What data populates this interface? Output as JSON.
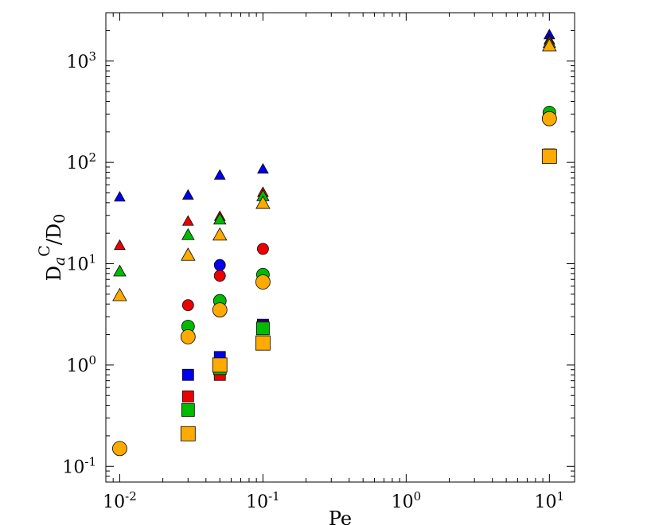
{
  "chart_data": {
    "type": "scatter",
    "xscale": "log",
    "yscale": "log",
    "xlim": [
      0.008,
      15
    ],
    "ylim": [
      0.07,
      3000
    ],
    "xlabel": "Pe",
    "ylabel": {
      "base": "D",
      "sub1": "a",
      "sup": "C",
      "slash": "/D",
      "sub2": "0"
    },
    "grid": false,
    "x_ticks": [
      {
        "value": 0.01,
        "base": "10",
        "exp": "-2"
      },
      {
        "value": 0.1,
        "base": "10",
        "exp": "-1"
      },
      {
        "value": 1,
        "base": "10",
        "exp": "0"
      },
      {
        "value": 10,
        "base": "10",
        "exp": "1"
      }
    ],
    "y_ticks": [
      {
        "value": 0.1,
        "base": "10",
        "exp": "-1"
      },
      {
        "value": 1,
        "base": "10",
        "exp": "0"
      },
      {
        "value": 10,
        "base": "10",
        "exp": "1"
      },
      {
        "value": 100,
        "base": "10",
        "exp": "2"
      },
      {
        "value": 1000,
        "base": "10",
        "exp": "3"
      }
    ],
    "series": [
      {
        "marker": "triangle",
        "color": "#0000ee",
        "size": 7,
        "x": [
          0.01,
          0.03,
          0.05,
          0.1,
          10
        ],
        "y": [
          45,
          47,
          74,
          85,
          1800
        ]
      },
      {
        "marker": "triangle",
        "color": "#ee0000",
        "size": 7,
        "x": [
          0.01,
          0.03,
          0.05,
          0.1,
          10
        ],
        "y": [
          15,
          26,
          29,
          50,
          1600
        ]
      },
      {
        "marker": "triangle",
        "color": "#00bb00",
        "size": 8,
        "x": [
          0.01,
          0.03,
          0.05,
          0.1,
          10
        ],
        "y": [
          8.3,
          19,
          27,
          46,
          1500
        ]
      },
      {
        "marker": "triangle",
        "color": "#ffaa00",
        "size": 9,
        "x": [
          0.01,
          0.03,
          0.05,
          0.1,
          10
        ],
        "y": [
          4.8,
          12,
          19,
          39,
          1400
        ]
      },
      {
        "marker": "circle",
        "color": "#0000ee",
        "size": 7,
        "x": [
          0.05
        ],
        "y": [
          9.7
        ]
      },
      {
        "marker": "circle",
        "color": "#ee0000",
        "size": 7,
        "x": [
          0.03,
          0.05,
          0.1
        ],
        "y": [
          3.9,
          7.6,
          14
        ]
      },
      {
        "marker": "circle",
        "color": "#00bb00",
        "size": 8,
        "x": [
          0.03,
          0.05,
          0.1,
          10
        ],
        "y": [
          2.4,
          4.3,
          7.8,
          310
        ]
      },
      {
        "marker": "circle",
        "color": "#ffaa00",
        "size": 9,
        "x": [
          0.01,
          0.03,
          0.05,
          0.1,
          10
        ],
        "y": [
          0.15,
          1.9,
          3.5,
          6.6,
          270
        ]
      },
      {
        "marker": "square",
        "color": "#0000ee",
        "size": 7,
        "x": [
          0.03,
          0.05,
          0.1,
          10
        ],
        "y": [
          0.8,
          1.2,
          2.5,
          120
        ]
      },
      {
        "marker": "square",
        "color": "#ee0000",
        "size": 7,
        "x": [
          0.03,
          0.05,
          0.1
        ],
        "y": [
          0.49,
          0.8,
          2.4
        ]
      },
      {
        "marker": "square",
        "color": "#00bb00",
        "size": 8,
        "x": [
          0.03,
          0.05,
          0.1
        ],
        "y": [
          0.36,
          0.93,
          2.3
        ]
      },
      {
        "marker": "square",
        "color": "#ffaa00",
        "size": 9,
        "x": [
          0.03,
          0.05,
          0.1,
          10
        ],
        "y": [
          0.21,
          1.0,
          1.65,
          115
        ]
      }
    ]
  }
}
